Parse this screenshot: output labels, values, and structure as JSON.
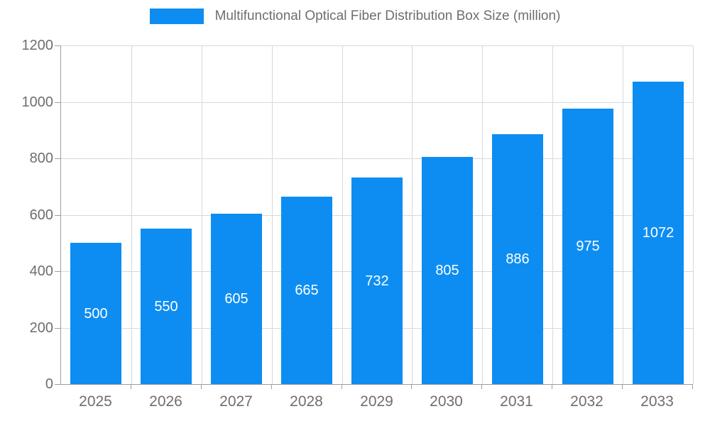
{
  "chart_data": {
    "type": "bar",
    "title": "Multifunctional Optical Fiber Distribution Box Size (million)",
    "categories": [
      "2025",
      "2026",
      "2027",
      "2028",
      "2029",
      "2030",
      "2031",
      "2032",
      "2033"
    ],
    "values": [
      500,
      550,
      605,
      665,
      732,
      805,
      886,
      975,
      1072
    ],
    "xlabel": "",
    "ylabel": "",
    "ylim": [
      0,
      1200
    ],
    "yticks": [
      0,
      200,
      400,
      600,
      800,
      1000,
      1200
    ],
    "grid": true,
    "legend_position": "top",
    "value_labels": "inside-center",
    "colors": {
      "bar": "#0d8df2",
      "value_label": "#ffffff",
      "axis_line": "#9e9e9e",
      "grid_line": "#d9d9d9",
      "tick_text": "#6e6e6e"
    }
  }
}
